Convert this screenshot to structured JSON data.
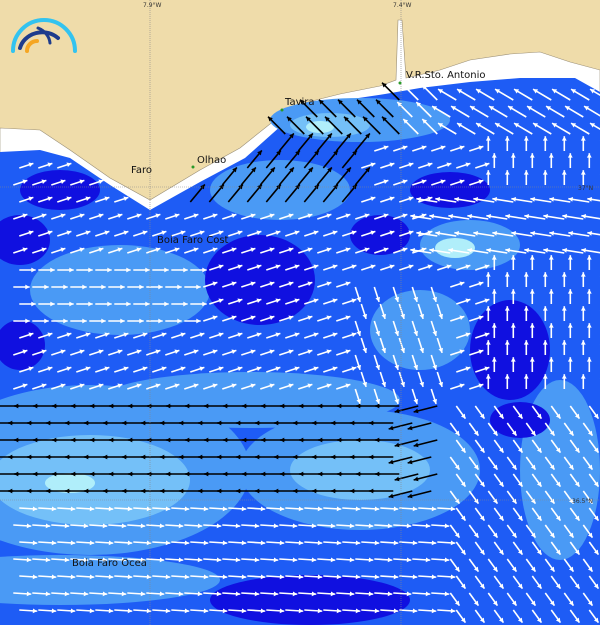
{
  "map": {
    "grid_labels": {
      "lon_west": "7.9°W",
      "lon_east": "7.4°W",
      "lat_north": "37°N",
      "lat_south": "36.5°N"
    },
    "places": [
      {
        "name": "V.R.Sto. Antonio"
      },
      {
        "name": "Tavira"
      },
      {
        "name": "Olhao"
      },
      {
        "name": "Faro"
      },
      {
        "name": "Boia Faro Cost"
      },
      {
        "name": "Boia Faro Ocea"
      }
    ],
    "logo": "wave-arcs-logo",
    "colors": {
      "land": "#efdcaa",
      "ocean_deep": "#1010e0",
      "ocean_mid": "#1e5cf5",
      "ocean_light": "#4a9af5",
      "ocean_lighter": "#74c0f8",
      "ocean_peak": "#b0eefa",
      "arrow_weak": "#ffffff",
      "arrow_strong": "#000000"
    }
  }
}
